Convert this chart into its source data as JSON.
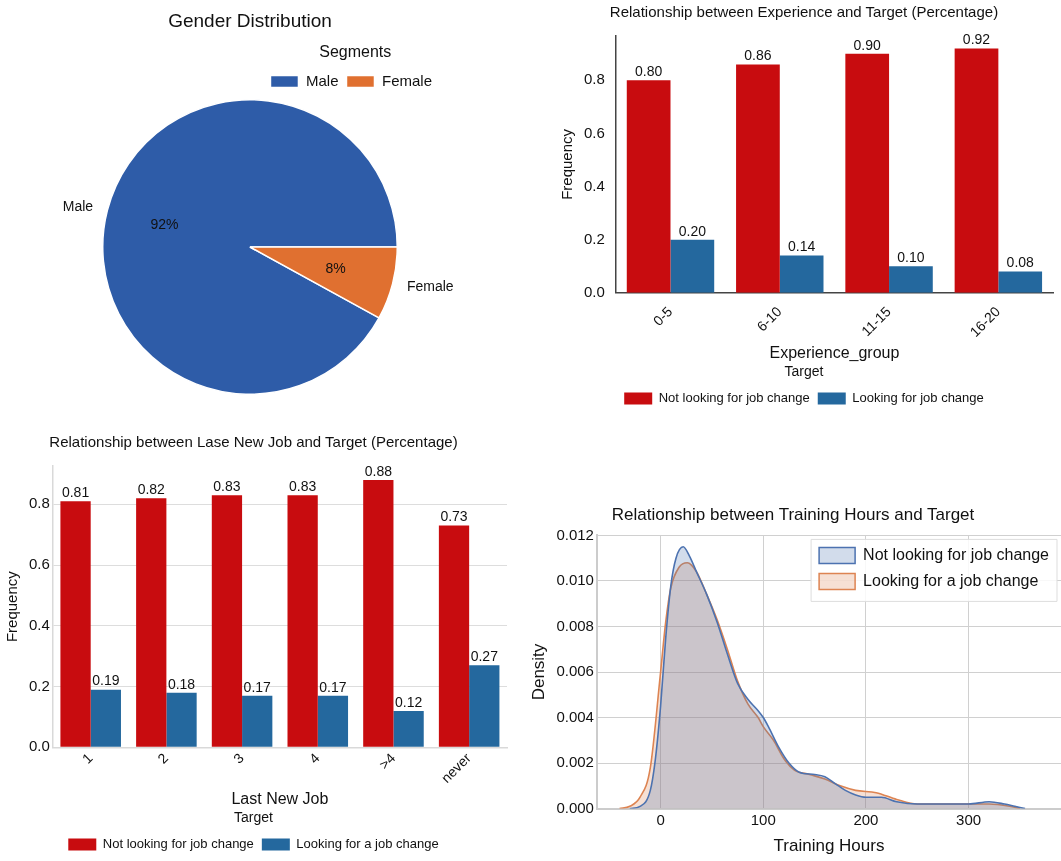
{
  "chart_data": [
    {
      "type": "pie",
      "title": "Gender Distribution",
      "legend_title": "Segments",
      "legend": "top right",
      "categories": [
        "Male",
        "Female"
      ],
      "values": [
        92,
        8
      ],
      "colors": [
        "#2e5ca8",
        "#e07030"
      ],
      "value_labels": [
        "92%",
        "8%"
      ]
    },
    {
      "type": "bar",
      "title": "Relationship between Experience and Target (Percentage)",
      "xlabel": "Experience_group",
      "ylabel": "Frequency",
      "legend": "bottom",
      "legend_title": "Target",
      "categories": [
        "0-5",
        "6-10",
        "11-15",
        "16-20"
      ],
      "ylim": [
        0,
        0.967
      ],
      "yticks": [
        {
          "value": 0,
          "label": "0.0"
        },
        {
          "value": 0.2,
          "label": "0.2"
        },
        {
          "value": 0.4,
          "label": "0.4"
        },
        {
          "value": 0.6,
          "label": "0.6"
        },
        {
          "value": 0.8,
          "label": "0.8"
        }
      ],
      "grid": false,
      "series": [
        {
          "name": "Not looking for job change",
          "color": "#c80c0f",
          "values": [
            0.8,
            0.86,
            0.9,
            0.92
          ],
          "value_labels": [
            "0.80",
            "0.86",
            "0.90",
            "0.92"
          ]
        },
        {
          "name": "Looking for job change",
          "color": "#24689e",
          "values": [
            0.2,
            0.14,
            0.1,
            0.08
          ],
          "value_labels": [
            "0.20",
            "0.14",
            "0.10",
            "0.08"
          ]
        }
      ]
    },
    {
      "type": "bar",
      "title": "Relationship between Lase New Job and Target (Percentage)",
      "xlabel": "Last New Job",
      "ylabel": "Frequency",
      "legend": "bottom",
      "legend_title": "Target",
      "categories": [
        "1",
        "2",
        "3",
        "4",
        ">4",
        "never"
      ],
      "ylim": [
        0,
        0.926
      ],
      "yticks": [
        {
          "value": 0,
          "label": "0.0"
        },
        {
          "value": 0.2,
          "label": "0.2"
        },
        {
          "value": 0.4,
          "label": "0.4"
        },
        {
          "value": 0.6,
          "label": "0.6"
        },
        {
          "value": 0.8,
          "label": "0.8"
        }
      ],
      "grid": "y",
      "series": [
        {
          "name": "Not looking for job change",
          "color": "#c80c0f",
          "values": [
            0.81,
            0.82,
            0.83,
            0.83,
            0.88,
            0.73
          ],
          "value_labels": [
            "0.81",
            "0.82",
            "0.83",
            "0.83",
            "0.88",
            "0.73"
          ]
        },
        {
          "name": "Looking for a job change",
          "color": "#24689e",
          "values": [
            0.19,
            0.18,
            0.17,
            0.17,
            0.12,
            0.27
          ],
          "value_labels": [
            "0.19",
            "0.18",
            "0.17",
            "0.17",
            "0.12",
            "0.27"
          ]
        }
      ]
    },
    {
      "type": "area",
      "title": "Relationship between Training Hours and Target",
      "xlabel": "Training Hours",
      "ylabel": "Density",
      "legend": "top right",
      "grid": true,
      "xlim": [
        -62,
        390
      ],
      "xticks": [
        0,
        100,
        200,
        300
      ],
      "ylim": [
        0,
        0.012
      ],
      "yticks": [
        {
          "value": 0,
          "label": "0.000"
        },
        {
          "value": 0.002,
          "label": "0.002"
        },
        {
          "value": 0.004,
          "label": "0.004"
        },
        {
          "value": 0.006,
          "label": "0.006"
        },
        {
          "value": 0.008,
          "label": "0.008"
        },
        {
          "value": 0.01,
          "label": "0.010"
        },
        {
          "value": 0.012,
          "label": "0.012"
        }
      ],
      "series": [
        {
          "name": "Not looking for job change",
          "color": "#4c72b0",
          "x": [
            -30,
            -20,
            -10,
            -5,
            0,
            5,
            10,
            15,
            22,
            28,
            35,
            45,
            55,
            65,
            75,
            85,
            95,
            100,
            105,
            115,
            125,
            135,
            150,
            160,
            170,
            180,
            190,
            200,
            215,
            230,
            250,
            280,
            300,
            320,
            335,
            345,
            355
          ],
          "values": [
            0,
            0.0001,
            0.0008,
            0.0022,
            0.0045,
            0.0075,
            0.0098,
            0.011,
            0.0115,
            0.0111,
            0.0104,
            0.0094,
            0.0082,
            0.0068,
            0.0055,
            0.0048,
            0.0043,
            0.004,
            0.0036,
            0.0027,
            0.002,
            0.0016,
            0.0015,
            0.0014,
            0.0011,
            0.0008,
            0.0006,
            0.0005,
            0.0005,
            0.0003,
            0.0002,
            0.0002,
            0.0002,
            0.0003,
            0.0002,
            0.0001,
            0
          ]
        },
        {
          "name": "Looking for a job change",
          "color": "#dd8452",
          "x": [
            -40,
            -30,
            -20,
            -10,
            0,
            5,
            10,
            18,
            26,
            35,
            45,
            55,
            65,
            75,
            85,
            95,
            100,
            110,
            120,
            130,
            145,
            160,
            175,
            190,
            210,
            230,
            250,
            280,
            300,
            320,
            340,
            350
          ],
          "values": [
            0,
            0.0001,
            0.0005,
            0.0018,
            0.006,
            0.0082,
            0.0097,
            0.0106,
            0.0108,
            0.0104,
            0.0094,
            0.0083,
            0.007,
            0.0056,
            0.0046,
            0.004,
            0.0036,
            0.003,
            0.0022,
            0.0017,
            0.0015,
            0.0013,
            0.001,
            0.0008,
            0.0007,
            0.0004,
            0.0002,
            0.0002,
            0.0002,
            0.0002,
            0.0001,
            0
          ]
        }
      ]
    }
  ]
}
